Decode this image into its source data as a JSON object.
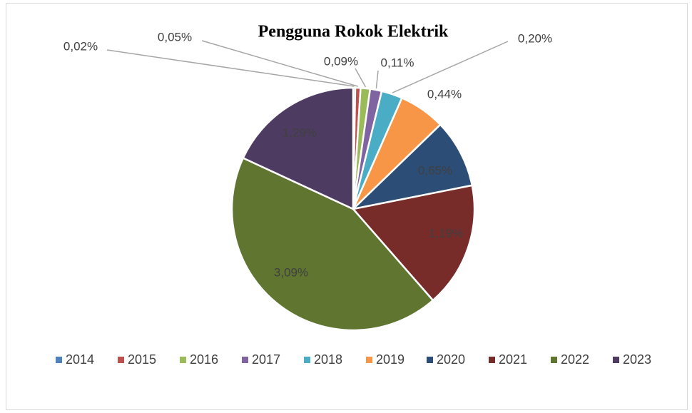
{
  "chart_data": {
    "type": "pie",
    "title": "Pengguna Rokok Elektrik",
    "categories": [
      "2014",
      "2015",
      "2016",
      "2017",
      "2018",
      "2019",
      "2020",
      "2021",
      "2022",
      "2023"
    ],
    "values": [
      0.02,
      0.05,
      0.09,
      0.11,
      0.2,
      0.44,
      0.65,
      1.19,
      3.09,
      1.29
    ],
    "value_labels": [
      "0,02%",
      "0,05%",
      "0,09%",
      "0,11%",
      "0,20%",
      "0,44%",
      "0,65%",
      "1,19%",
      "3,09%",
      "1,29%"
    ],
    "colors": [
      "#4f81bd",
      "#c0504d",
      "#9bbb59",
      "#8064a2",
      "#4bacc6",
      "#f79646",
      "#2c4d75",
      "#772c2a",
      "#5f7530",
      "#4d3b62"
    ],
    "legend": "bottom"
  }
}
